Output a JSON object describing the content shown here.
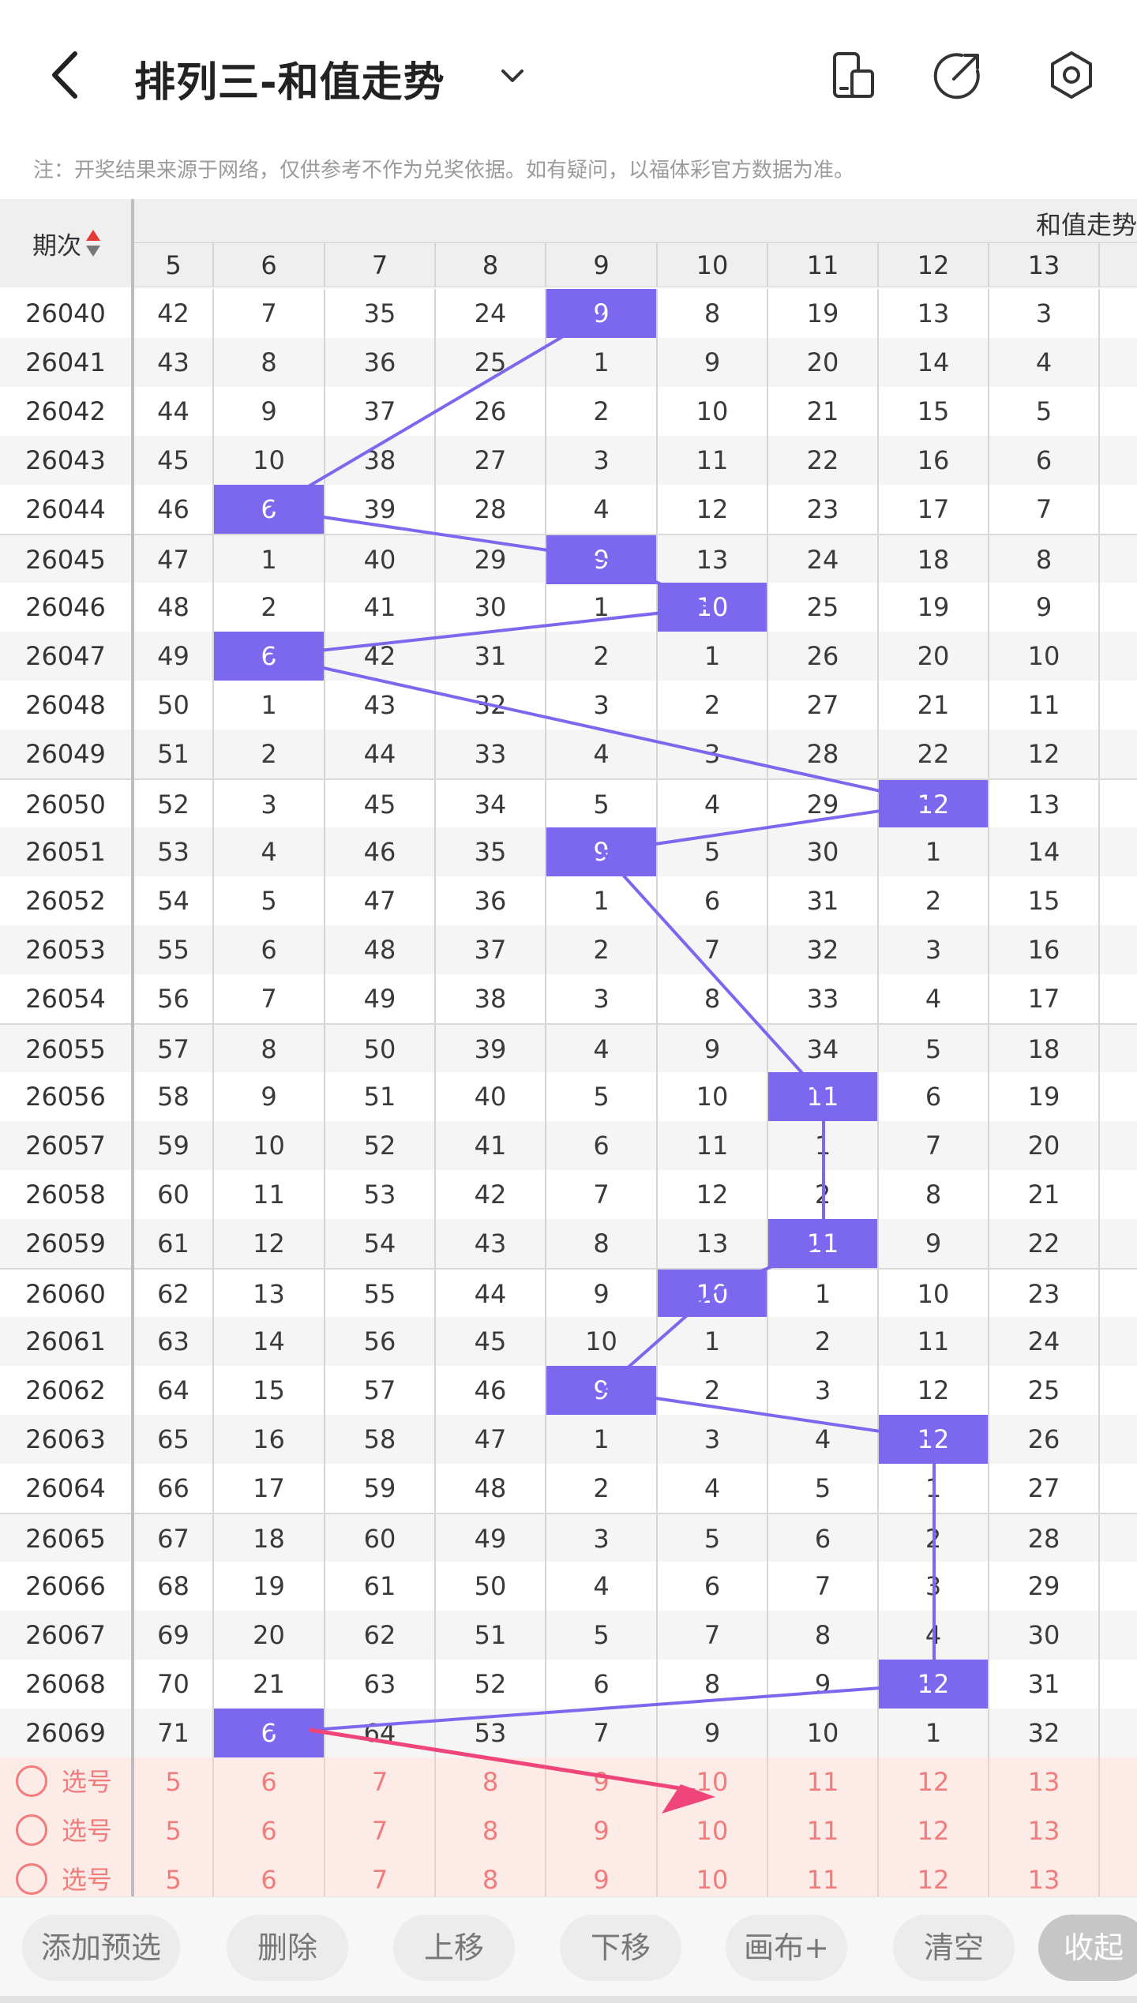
{
  "header": {
    "title": "排列三-和值走势",
    "note": "注：开奖结果来源于网络，仅供参考不作为兑奖依据。如有疑问，以福体彩官方数据为准。"
  },
  "table": {
    "issue_header": "期次",
    "group_title": "和值走势",
    "columns": [
      "5",
      "6",
      "7",
      "8",
      "9",
      "10",
      "11",
      "12",
      "13"
    ],
    "rows": [
      {
        "issue": "26040",
        "cells": [
          "42",
          "7",
          "35",
          "24",
          "9",
          "8",
          "19",
          "13",
          "3"
        ],
        "hit": 4
      },
      {
        "issue": "26041",
        "cells": [
          "43",
          "8",
          "36",
          "25",
          "1",
          "9",
          "20",
          "14",
          "4"
        ],
        "hit": -1
      },
      {
        "issue": "26042",
        "cells": [
          "44",
          "9",
          "37",
          "26",
          "2",
          "10",
          "21",
          "15",
          "5"
        ],
        "hit": -1
      },
      {
        "issue": "26043",
        "cells": [
          "45",
          "10",
          "38",
          "27",
          "3",
          "11",
          "22",
          "16",
          "6"
        ],
        "hit": -1
      },
      {
        "issue": "26044",
        "cells": [
          "46",
          "6",
          "39",
          "28",
          "4",
          "12",
          "23",
          "17",
          "7"
        ],
        "hit": 1
      },
      {
        "issue": "26045",
        "cells": [
          "47",
          "1",
          "40",
          "29",
          "9",
          "13",
          "24",
          "18",
          "8"
        ],
        "hit": 4
      },
      {
        "issue": "26046",
        "cells": [
          "48",
          "2",
          "41",
          "30",
          "1",
          "10",
          "25",
          "19",
          "9"
        ],
        "hit": 5
      },
      {
        "issue": "26047",
        "cells": [
          "49",
          "6",
          "42",
          "31",
          "2",
          "1",
          "26",
          "20",
          "10"
        ],
        "hit": 1
      },
      {
        "issue": "26048",
        "cells": [
          "50",
          "1",
          "43",
          "32",
          "3",
          "2",
          "27",
          "21",
          "11"
        ],
        "hit": -1
      },
      {
        "issue": "26049",
        "cells": [
          "51",
          "2",
          "44",
          "33",
          "4",
          "3",
          "28",
          "22",
          "12"
        ],
        "hit": -1
      },
      {
        "issue": "26050",
        "cells": [
          "52",
          "3",
          "45",
          "34",
          "5",
          "4",
          "29",
          "12",
          "13"
        ],
        "hit": 7
      },
      {
        "issue": "26051",
        "cells": [
          "53",
          "4",
          "46",
          "35",
          "9",
          "5",
          "30",
          "1",
          "14"
        ],
        "hit": 4
      },
      {
        "issue": "26052",
        "cells": [
          "54",
          "5",
          "47",
          "36",
          "1",
          "6",
          "31",
          "2",
          "15"
        ],
        "hit": -1
      },
      {
        "issue": "26053",
        "cells": [
          "55",
          "6",
          "48",
          "37",
          "2",
          "7",
          "32",
          "3",
          "16"
        ],
        "hit": -1
      },
      {
        "issue": "26054",
        "cells": [
          "56",
          "7",
          "49",
          "38",
          "3",
          "8",
          "33",
          "4",
          "17"
        ],
        "hit": -1
      },
      {
        "issue": "26055",
        "cells": [
          "57",
          "8",
          "50",
          "39",
          "4",
          "9",
          "34",
          "5",
          "18"
        ],
        "hit": -1
      },
      {
        "issue": "26056",
        "cells": [
          "58",
          "9",
          "51",
          "40",
          "5",
          "10",
          "11",
          "6",
          "19"
        ],
        "hit": 6
      },
      {
        "issue": "26057",
        "cells": [
          "59",
          "10",
          "52",
          "41",
          "6",
          "11",
          "1",
          "7",
          "20"
        ],
        "hit": -1
      },
      {
        "issue": "26058",
        "cells": [
          "60",
          "11",
          "53",
          "42",
          "7",
          "12",
          "2",
          "8",
          "21"
        ],
        "hit": -1
      },
      {
        "issue": "26059",
        "cells": [
          "61",
          "12",
          "54",
          "43",
          "8",
          "13",
          "11",
          "9",
          "22"
        ],
        "hit": 6
      },
      {
        "issue": "26060",
        "cells": [
          "62",
          "13",
          "55",
          "44",
          "9",
          "10",
          "1",
          "10",
          "23"
        ],
        "hit": 5
      },
      {
        "issue": "26061",
        "cells": [
          "63",
          "14",
          "56",
          "45",
          "10",
          "1",
          "2",
          "11",
          "24"
        ],
        "hit": -1
      },
      {
        "issue": "26062",
        "cells": [
          "64",
          "15",
          "57",
          "46",
          "9",
          "2",
          "3",
          "12",
          "25"
        ],
        "hit": 4
      },
      {
        "issue": "26063",
        "cells": [
          "65",
          "16",
          "58",
          "47",
          "1",
          "3",
          "4",
          "12",
          "26"
        ],
        "hit": 7
      },
      {
        "issue": "26064",
        "cells": [
          "66",
          "17",
          "59",
          "48",
          "2",
          "4",
          "5",
          "1",
          "27"
        ],
        "hit": -1
      },
      {
        "issue": "26065",
        "cells": [
          "67",
          "18",
          "60",
          "49",
          "3",
          "5",
          "6",
          "2",
          "28"
        ],
        "hit": -1
      },
      {
        "issue": "26066",
        "cells": [
          "68",
          "19",
          "61",
          "50",
          "4",
          "6",
          "7",
          "3",
          "29"
        ],
        "hit": -1
      },
      {
        "issue": "26067",
        "cells": [
          "69",
          "20",
          "62",
          "51",
          "5",
          "7",
          "8",
          "4",
          "30"
        ],
        "hit": -1
      },
      {
        "issue": "26068",
        "cells": [
          "70",
          "21",
          "63",
          "52",
          "6",
          "8",
          "9",
          "12",
          "31"
        ],
        "hit": 7
      },
      {
        "issue": "26069",
        "cells": [
          "71",
          "6",
          "64",
          "53",
          "7",
          "9",
          "10",
          "1",
          "32"
        ],
        "hit": 1
      }
    ],
    "selection_rows": [
      {
        "label": "选号",
        "cells": [
          "5",
          "6",
          "7",
          "8",
          "9",
          "10",
          "11",
          "12",
          "13"
        ]
      },
      {
        "label": "选号",
        "cells": [
          "5",
          "6",
          "7",
          "8",
          "9",
          "10",
          "11",
          "12",
          "13"
        ]
      },
      {
        "label": "选号",
        "cells": [
          "5",
          "6",
          "7",
          "8",
          "9",
          "10",
          "11",
          "12",
          "13"
        ]
      }
    ]
  },
  "toolbar": {
    "buttons": [
      "添加预选",
      "删除",
      "上移",
      "下移",
      "画布+",
      "清空",
      "收起"
    ]
  },
  "colors": {
    "accent": "#7b68ee",
    "selection_bg": "#fdebe7",
    "selection_text": "#f07c7c",
    "arrow": "#f0457a"
  },
  "icons": [
    "back-arrow-icon",
    "dropdown-chevron-icon",
    "device-icon",
    "share-icon",
    "settings-icon",
    "sort-icon",
    "radio-icon"
  ]
}
